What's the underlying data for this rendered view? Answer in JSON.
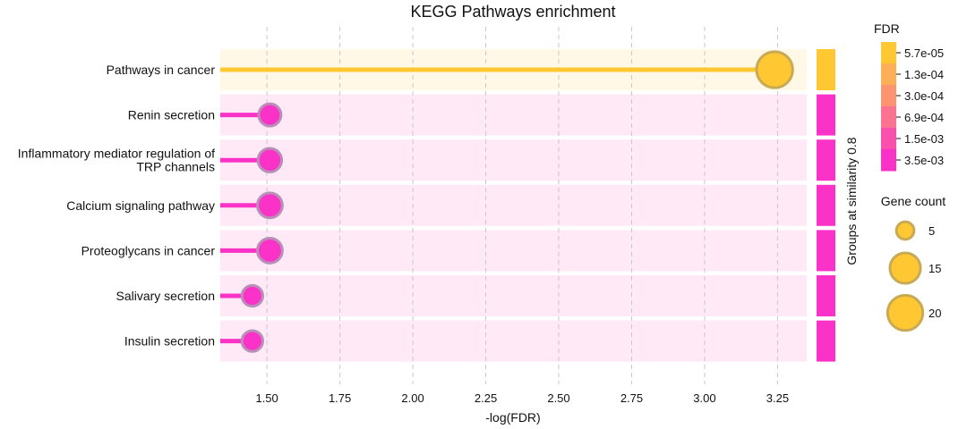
{
  "chart_data": {
    "type": "lollipop",
    "title": "KEGG Pathways enrichment",
    "xlabel": "-log(FDR)",
    "xlim": [
      1.34,
      3.35
    ],
    "x_ticks": [
      "1.50",
      "1.75",
      "2.00",
      "2.25",
      "2.50",
      "2.75",
      "3.00",
      "3.25"
    ],
    "x_tick_values": [
      1.5,
      1.75,
      2.0,
      2.25,
      2.5,
      2.75,
      3.0,
      3.25
    ],
    "grid": "vertical dashed",
    "categories": [
      "Pathways in cancer",
      "Renin secretion",
      "Inflammatory mediator regulation of\nTRP channels",
      "Calcium signaling pathway",
      "Proteoglycans in cancer",
      "Salivary secretion",
      "Insulin secretion"
    ],
    "values": [
      3.24,
      1.51,
      1.51,
      1.51,
      1.51,
      1.45,
      1.45
    ],
    "gene_counts": [
      21,
      8,
      9,
      10,
      10,
      7,
      7
    ],
    "point_colors": [
      "#ffc832",
      "#fa32c8",
      "#fa32c8",
      "#fa32c8",
      "#fa32c8",
      "#fa32c8",
      "#fa32c8"
    ],
    "row_background_colors": [
      "#fff8e6",
      "#ffe9f7",
      "#ffe9f7",
      "#ffe9f7",
      "#ffe9f7",
      "#ffe9f7",
      "#ffe9f7"
    ],
    "group_strip_label": "Groups at similarity 0.8",
    "group_strip_colors": [
      "#ffc832",
      "#fa32c8",
      "#fa32c8",
      "#fa32c8",
      "#fa32c8",
      "#fa32c8",
      "#fa32c8"
    ],
    "fdr_legend": {
      "title": "FDR",
      "ticks": [
        "5.7e-05",
        "1.3e-04",
        "3.0e-04",
        "6.9e-04",
        "1.5e-03",
        "3.5e-03"
      ],
      "colors": [
        "#ffc832",
        "#fdaf57",
        "#fc9472",
        "#fb7390",
        "#fa4fad",
        "#fa32c8"
      ]
    },
    "size_legend": {
      "title": "Gene count",
      "values": [
        "5",
        "15",
        "20"
      ],
      "color": "#ffc832",
      "edge_color": "#c8aa55"
    }
  }
}
